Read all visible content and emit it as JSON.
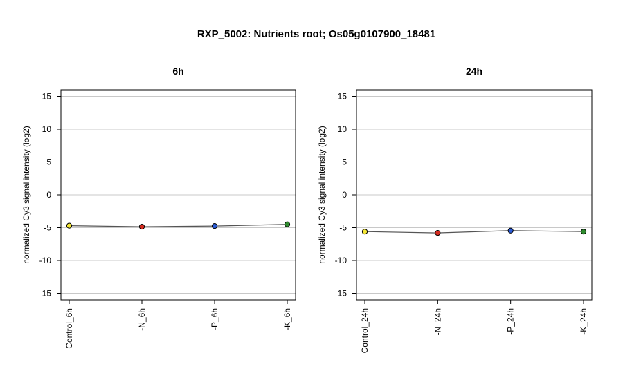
{
  "title": "RXP_5002: Nutrients root; Os05g0107900_18481",
  "colors": {
    "grid": "#c8c8c8",
    "line": "#555555",
    "frame": "#000000",
    "Control": "#f5e836",
    "N": "#d62b1f",
    "P": "#2a5bd7",
    "K": "#2e8b2e"
  },
  "chart_data": [
    {
      "type": "line",
      "title": "6h",
      "ylabel": "normalized Cy3 signal intensity (log2)",
      "xlabel": "",
      "categories": [
        "Control_6h",
        "-N_6h",
        "-P_6h",
        "-K_6h"
      ],
      "point_colors": [
        "Control",
        "N",
        "P",
        "K"
      ],
      "values": [
        -4.7,
        -4.85,
        -4.75,
        -4.5
      ],
      "ylim": [
        -16,
        16
      ],
      "yticks": [
        -15,
        -10,
        -5,
        0,
        5,
        10,
        15
      ],
      "grid": true
    },
    {
      "type": "line",
      "title": "24h",
      "ylabel": "normalized Cy3 signal intensity (log2)",
      "xlabel": "",
      "categories": [
        "Control_24h",
        "-N_24h",
        "-P_24h",
        "-K_24h"
      ],
      "point_colors": [
        "Control",
        "N",
        "P",
        "K"
      ],
      "values": [
        -5.6,
        -5.8,
        -5.45,
        -5.6
      ],
      "ylim": [
        -16,
        16
      ],
      "yticks": [
        -15,
        -10,
        -5,
        0,
        5,
        10,
        15
      ],
      "grid": true
    }
  ]
}
